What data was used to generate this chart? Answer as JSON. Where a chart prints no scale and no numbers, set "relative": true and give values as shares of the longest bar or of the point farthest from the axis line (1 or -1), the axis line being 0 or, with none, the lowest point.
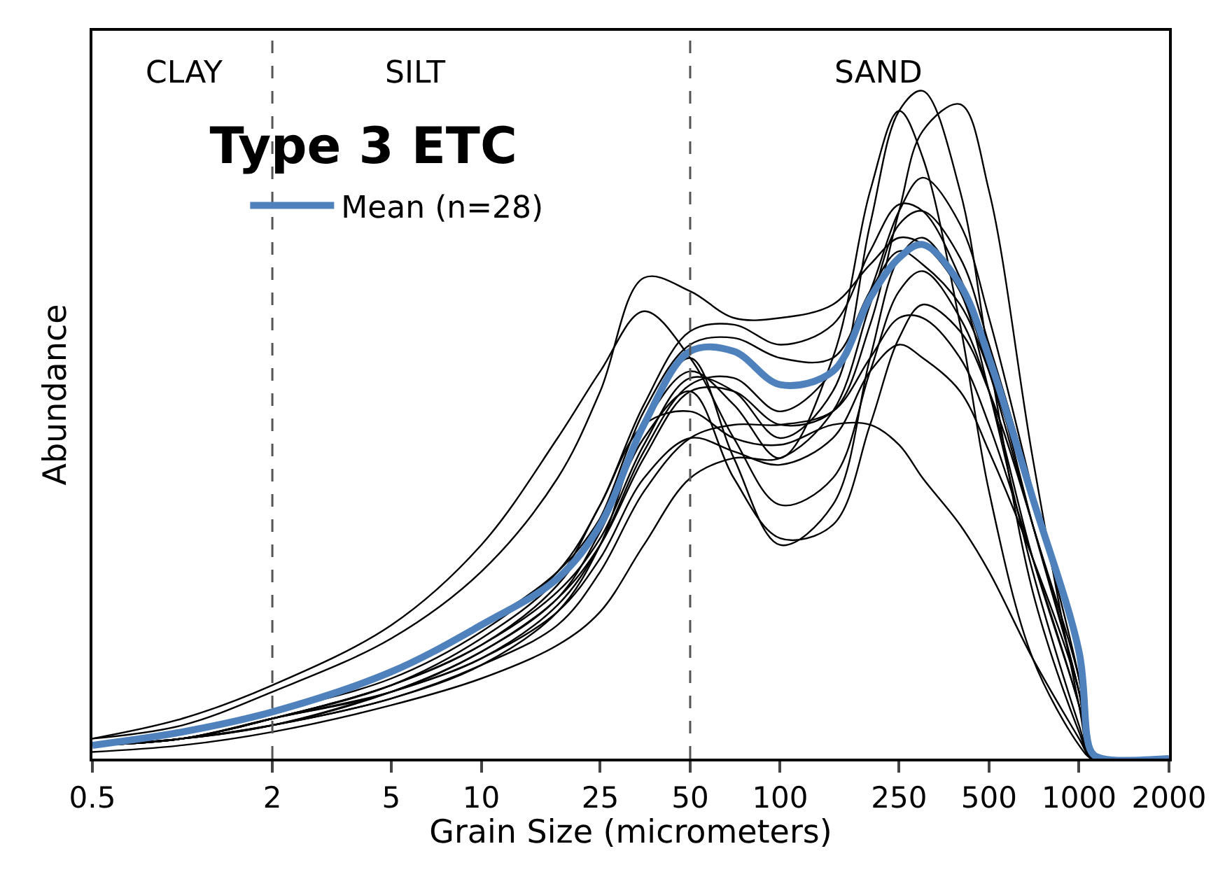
{
  "chart_data": {
    "type": "line",
    "title": "Type 3 ETC",
    "xlabel": "Grain Size (micrometers)",
    "ylabel": "Abundance",
    "relative": true,
    "log": "x",
    "legend": "top left",
    "marker": "none",
    "line_style": "solid",
    "annotations": [
      "CLAY",
      "SILT",
      "SAND"
    ],
    "xlim": [
      0.5,
      2000
    ],
    "xticks": [
      0.5,
      2,
      5,
      10,
      25,
      50,
      100,
      250,
      500,
      1000,
      2000
    ],
    "ref_lines": [
      {
        "axis": "x",
        "value": 2,
        "label": null,
        "color": "#555555",
        "line_style": "dashed"
      },
      {
        "axis": "x",
        "value": 50,
        "label": null,
        "color": "#555555",
        "line_style": "dashed"
      }
    ],
    "x": [
      0.5,
      1,
      2,
      5,
      10,
      18,
      25,
      35,
      50,
      70,
      100,
      150,
      200,
      250,
      300,
      400,
      500,
      700,
      1000,
      1100,
      1200,
      2000
    ],
    "series": [
      {
        "color": "#000000",
        "values": [
          0.02,
          0.03,
          0.06,
          0.11,
          0.17,
          0.25,
          0.33,
          0.47,
          0.57,
          0.55,
          0.48,
          0.55,
          0.8,
          0.97,
          1.0,
          0.85,
          0.6,
          0.25,
          0.04,
          0,
          0,
          0
        ]
      },
      {
        "color": "#000000",
        "values": [
          0.02,
          0.03,
          0.05,
          0.1,
          0.16,
          0.24,
          0.32,
          0.45,
          0.55,
          0.55,
          0.5,
          0.52,
          0.65,
          0.82,
          0.94,
          0.98,
          0.85,
          0.45,
          0.08,
          0,
          0,
          0
        ]
      },
      {
        "color": "#000000",
        "values": [
          0.02,
          0.04,
          0.07,
          0.13,
          0.2,
          0.28,
          0.36,
          0.5,
          0.58,
          0.53,
          0.45,
          0.6,
          0.85,
          0.97,
          0.9,
          0.65,
          0.4,
          0.15,
          0.02,
          0,
          0,
          0
        ]
      },
      {
        "color": "#000000",
        "values": [
          0.03,
          0.05,
          0.1,
          0.18,
          0.28,
          0.42,
          0.55,
          0.72,
          0.7,
          0.66,
          0.66,
          0.68,
          0.74,
          0.78,
          0.77,
          0.7,
          0.58,
          0.35,
          0.12,
          0,
          0,
          0
        ]
      },
      {
        "color": "#000000",
        "values": [
          0.03,
          0.06,
          0.11,
          0.2,
          0.32,
          0.48,
          0.58,
          0.67,
          0.6,
          0.48,
          0.38,
          0.42,
          0.58,
          0.7,
          0.73,
          0.66,
          0.55,
          0.3,
          0.08,
          0,
          0,
          0
        ]
      },
      {
        "color": "#000000",
        "values": [
          0.02,
          0.03,
          0.05,
          0.09,
          0.14,
          0.22,
          0.32,
          0.5,
          0.6,
          0.45,
          0.32,
          0.38,
          0.6,
          0.75,
          0.78,
          0.7,
          0.55,
          0.28,
          0.05,
          0,
          0,
          0
        ]
      },
      {
        "color": "#000000",
        "values": [
          0.02,
          0.03,
          0.06,
          0.11,
          0.18,
          0.27,
          0.38,
          0.5,
          0.52,
          0.48,
          0.47,
          0.5,
          0.5,
          0.47,
          0.42,
          0.35,
          0.28,
          0.15,
          0.03,
          0,
          0,
          0
        ]
      },
      {
        "color": "#000000",
        "values": [
          0.02,
          0.03,
          0.05,
          0.09,
          0.14,
          0.2,
          0.28,
          0.4,
          0.48,
          0.5,
          0.5,
          0.52,
          0.6,
          0.66,
          0.66,
          0.6,
          0.5,
          0.3,
          0.08,
          0,
          0,
          0
        ]
      },
      {
        "color": "#000000",
        "values": [
          0.02,
          0.04,
          0.07,
          0.12,
          0.19,
          0.28,
          0.38,
          0.53,
          0.64,
          0.65,
          0.62,
          0.65,
          0.76,
          0.83,
          0.82,
          0.72,
          0.6,
          0.35,
          0.1,
          0,
          0,
          0
        ]
      },
      {
        "color": "#000000",
        "values": [
          0.01,
          0.02,
          0.04,
          0.08,
          0.12,
          0.17,
          0.22,
          0.32,
          0.42,
          0.45,
          0.45,
          0.52,
          0.68,
          0.8,
          0.82,
          0.75,
          0.62,
          0.4,
          0.15,
          0,
          0,
          0
        ]
      },
      {
        "color": "#000000",
        "values": [
          0.02,
          0.03,
          0.06,
          0.1,
          0.16,
          0.24,
          0.34,
          0.48,
          0.55,
          0.42,
          0.33,
          0.35,
          0.5,
          0.63,
          0.68,
          0.64,
          0.55,
          0.35,
          0.1,
          0,
          0,
          0
        ]
      },
      {
        "color": "#000000",
        "values": [
          0.02,
          0.03,
          0.06,
          0.11,
          0.17,
          0.26,
          0.36,
          0.52,
          0.62,
          0.63,
          0.6,
          0.6,
          0.7,
          0.76,
          0.74,
          0.68,
          0.58,
          0.38,
          0.15,
          0,
          0,
          0
        ]
      },
      {
        "color": "#000000",
        "values": [
          0.02,
          0.03,
          0.05,
          0.1,
          0.15,
          0.23,
          0.32,
          0.46,
          0.56,
          0.57,
          0.52,
          0.58,
          0.7,
          0.82,
          0.87,
          0.8,
          0.66,
          0.4,
          0.12,
          0,
          0,
          0
        ]
      },
      {
        "color": "#000000",
        "values": [
          0.02,
          0.03,
          0.06,
          0.1,
          0.15,
          0.22,
          0.3,
          0.42,
          0.48,
          0.46,
          0.44,
          0.48,
          0.58,
          0.62,
          0.6,
          0.55,
          0.46,
          0.3,
          0.1,
          0,
          0,
          0
        ]
      },
      {
        "name": "Mean (n=28)",
        "color": "#4f81bd",
        "values": [
          0.02,
          0.04,
          0.07,
          0.13,
          0.2,
          0.27,
          0.35,
          0.5,
          0.61,
          0.61,
          0.56,
          0.58,
          0.69,
          0.75,
          0.77,
          0.71,
          0.6,
          0.39,
          0.16,
          0.01,
          0,
          0
        ]
      }
    ]
  }
}
